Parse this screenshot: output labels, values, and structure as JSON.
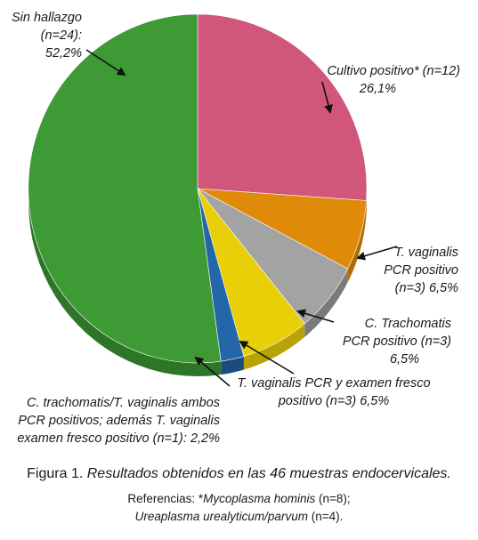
{
  "chart_data": {
    "type": "pie",
    "slices": [
      {
        "name": "Sin hallazgo",
        "n": 24,
        "value": 52.2,
        "color": "#3e9a35",
        "side": "#2d7527",
        "label_lines": [
          "Sin hallazgo",
          "(n=24):",
          "52,2%"
        ]
      },
      {
        "name": "Cultivo positivo*",
        "n": 12,
        "value": 26.1,
        "color": "#d0567c",
        "side": "#a13c5d",
        "label_lines": [
          "Cultivo positivo* (n=12)",
          "26,1%"
        ]
      },
      {
        "name": "T. vaginalis PCR positivo",
        "n": 3,
        "value": 6.5,
        "color": "#e08a0a",
        "side": "#b06b07",
        "label_lines": [
          "T. vaginalis",
          "PCR positivo",
          "(n=3) 6,5%"
        ]
      },
      {
        "name": "C. Trachomatis PCR positivo",
        "n": 3,
        "value": 6.5,
        "color": "#a3a3a3",
        "side": "#7a7a7a",
        "label_lines": [
          "C. Trachomatis",
          "PCR positivo  (n=3)",
          "6,5%"
        ]
      },
      {
        "name": "T. vaginalis PCR y examen fresco positivo",
        "n": 3,
        "value": 6.5,
        "color": "#e8cf08",
        "side": "#b8a206",
        "label_lines": [
          "T. vaginalis PCR y examen fresco",
          "positivo (n=3) 6,5%"
        ]
      },
      {
        "name": "C. trachomatis/T. vaginalis ambos PCR positivos; además T. vaginalis examen fresco positivo",
        "n": 1,
        "value": 2.2,
        "color": "#2467a8",
        "side": "#1a4c7d",
        "label_lines": [
          "C. trachomatis/T. vaginalis ambos",
          "PCR positivos; además T. vaginalis",
          "examen fresco positivo (n=1): 2,2%"
        ]
      }
    ]
  },
  "caption": {
    "figure": "Figura 1.",
    "text": "Resultados obtenidos en las 46 muestras endocervicales."
  },
  "references": {
    "prefix": "Referencias: *",
    "organism1": "Mycoplasma hominis",
    "count1": " (n=8);",
    "organism2": "Ureaplasma urealyticum/parvum",
    "count2": " (n=4)."
  }
}
